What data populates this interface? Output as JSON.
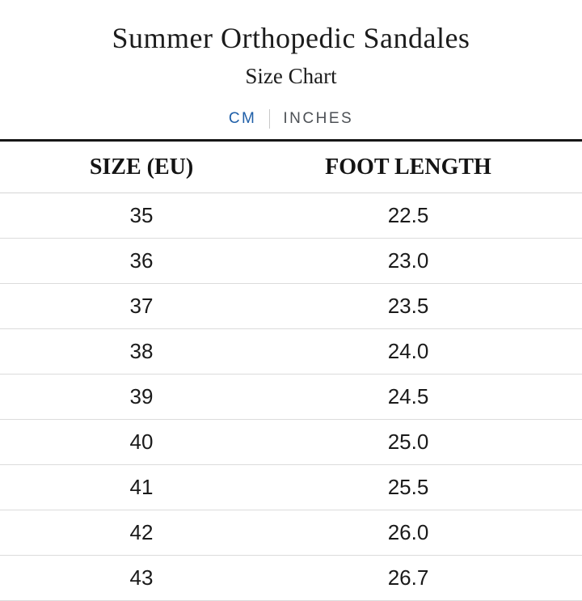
{
  "header": {
    "title": "Summer Orthopedic Sandales",
    "subtitle": "Size Chart"
  },
  "unit_toggle": {
    "options": [
      {
        "label": "CM",
        "active": true
      },
      {
        "label": "INCHES",
        "active": false
      }
    ],
    "active_unit": "CM",
    "active_color": "#1f5fa8",
    "inactive_color": "#4d5156"
  },
  "chart_data": {
    "type": "table",
    "title": "Summer Orthopedic Sandales Size Chart",
    "unit": "CM",
    "columns": [
      "SIZE (EU)",
      "FOOT LENGTH"
    ],
    "rows": [
      [
        "35",
        "22.5"
      ],
      [
        "36",
        "23.0"
      ],
      [
        "37",
        "23.5"
      ],
      [
        "38",
        "24.0"
      ],
      [
        "39",
        "24.5"
      ],
      [
        "40",
        "25.0"
      ],
      [
        "41",
        "25.5"
      ],
      [
        "42",
        "26.0"
      ],
      [
        "43",
        "26.7"
      ]
    ]
  }
}
